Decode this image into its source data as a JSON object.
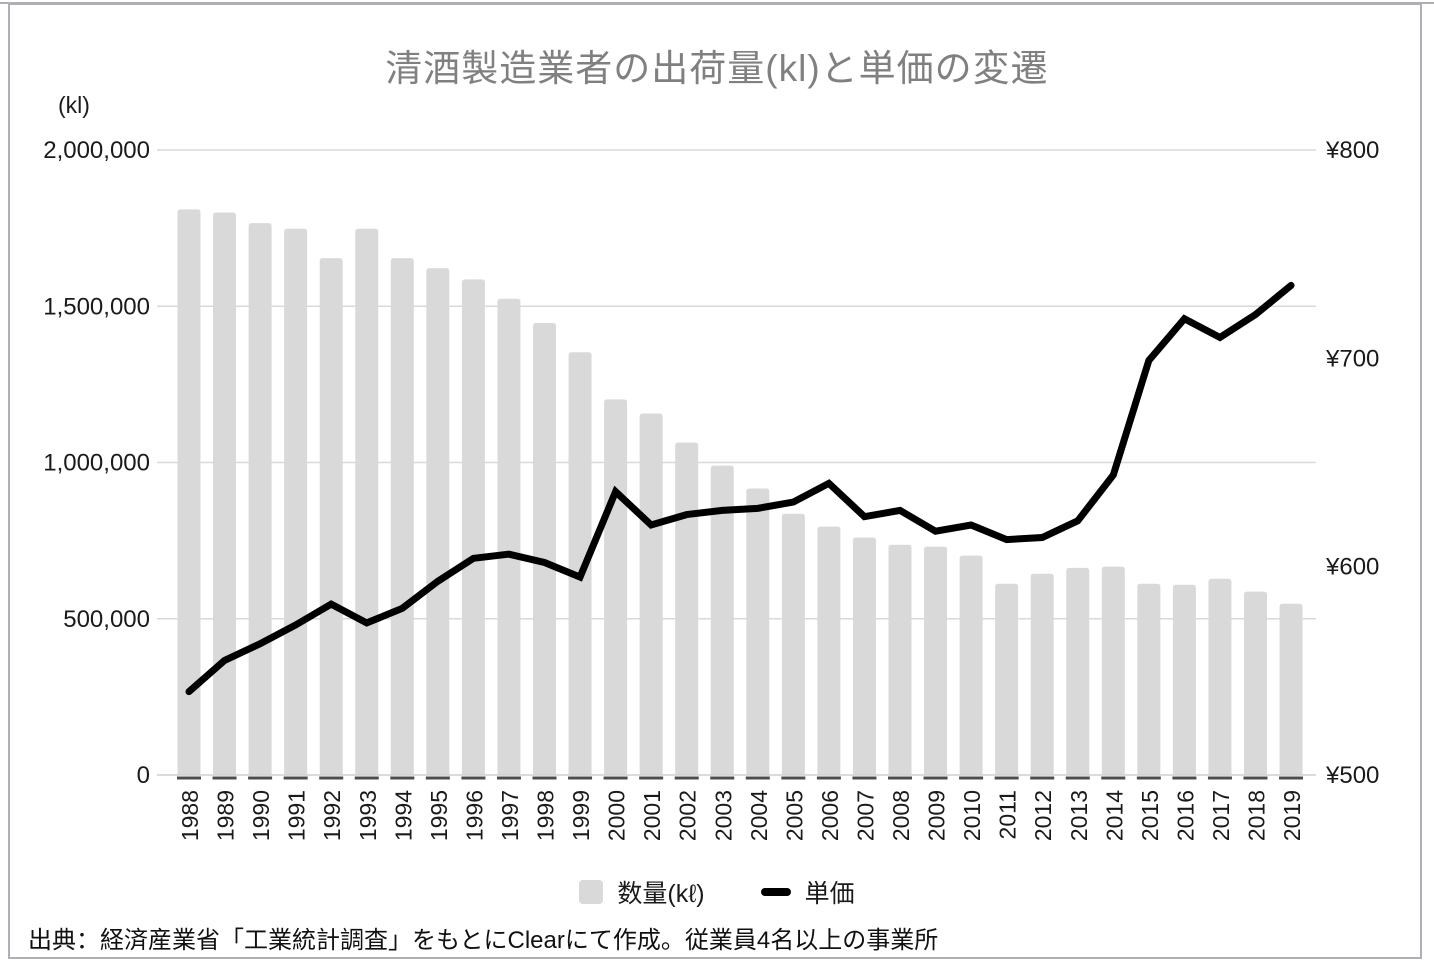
{
  "source_note": "出典：経済産業省「工業統計調査」をもとにClearにて作成。従業員4名以上の事業所",
  "legend": {
    "bars": "数量(kℓ)",
    "line": "単価"
  },
  "colors": {
    "bar": "#d9d9d9",
    "line": "#000000",
    "grid": "#d9d9d9",
    "axis_line": "#cfcfcf",
    "tick_dash": "#4d4d4d",
    "title": "#808080",
    "frame": "#b2afb4",
    "text": "#1a1a1a"
  },
  "chart_data": {
    "type": "bar+line",
    "title": "清酒製造業者の出荷量(kl)と単価の変遷",
    "categories": [
      "1988",
      "1989",
      "1990",
      "1991",
      "1992",
      "1993",
      "1994",
      "1995",
      "1996",
      "1997",
      "1998",
      "1999",
      "2000",
      "2001",
      "2002",
      "2003",
      "2004",
      "2005",
      "2006",
      "2007",
      "2008",
      "2009",
      "2010",
      "2011",
      "2012",
      "2013",
      "2014",
      "2015",
      "2016",
      "2017",
      "2018",
      "2019"
    ],
    "series": [
      {
        "name": "数量(kℓ)",
        "type": "bar",
        "axis": "left",
        "values": [
          1810000,
          1800000,
          1766000,
          1748000,
          1654000,
          1748000,
          1654000,
          1622000,
          1586000,
          1524000,
          1447000,
          1353000,
          1202000,
          1157000,
          1064000,
          990000,
          917000,
          836000,
          795000,
          760000,
          737000,
          731000,
          702000,
          612000,
          644000,
          663000,
          667000,
          612000,
          609000,
          628000,
          587000,
          548000
        ]
      },
      {
        "name": "単価",
        "type": "line",
        "axis": "right",
        "values": [
          540,
          555,
          563,
          572,
          582,
          573,
          580,
          593,
          604,
          606,
          602,
          595,
          636,
          620,
          625,
          627,
          628,
          631,
          640,
          624,
          627,
          617,
          620,
          613,
          614,
          622,
          644,
          699,
          719,
          710,
          721,
          735
        ]
      }
    ],
    "left_axis": {
      "label": "(kl)",
      "min": 0,
      "max": 2000000,
      "tick_values": [
        2000000,
        1500000,
        1000000,
        500000,
        0
      ],
      "tick_labels": [
        "2,000,000",
        "1,500,000",
        "1,000,000",
        "500,000",
        "0"
      ]
    },
    "right_axis": {
      "min": 500,
      "max": 800,
      "tick_values": [
        800,
        700,
        600,
        500
      ],
      "tick_labels": [
        "¥800",
        "¥700",
        "¥600",
        "¥500"
      ]
    },
    "grid": true,
    "legend_position": "bottom"
  }
}
